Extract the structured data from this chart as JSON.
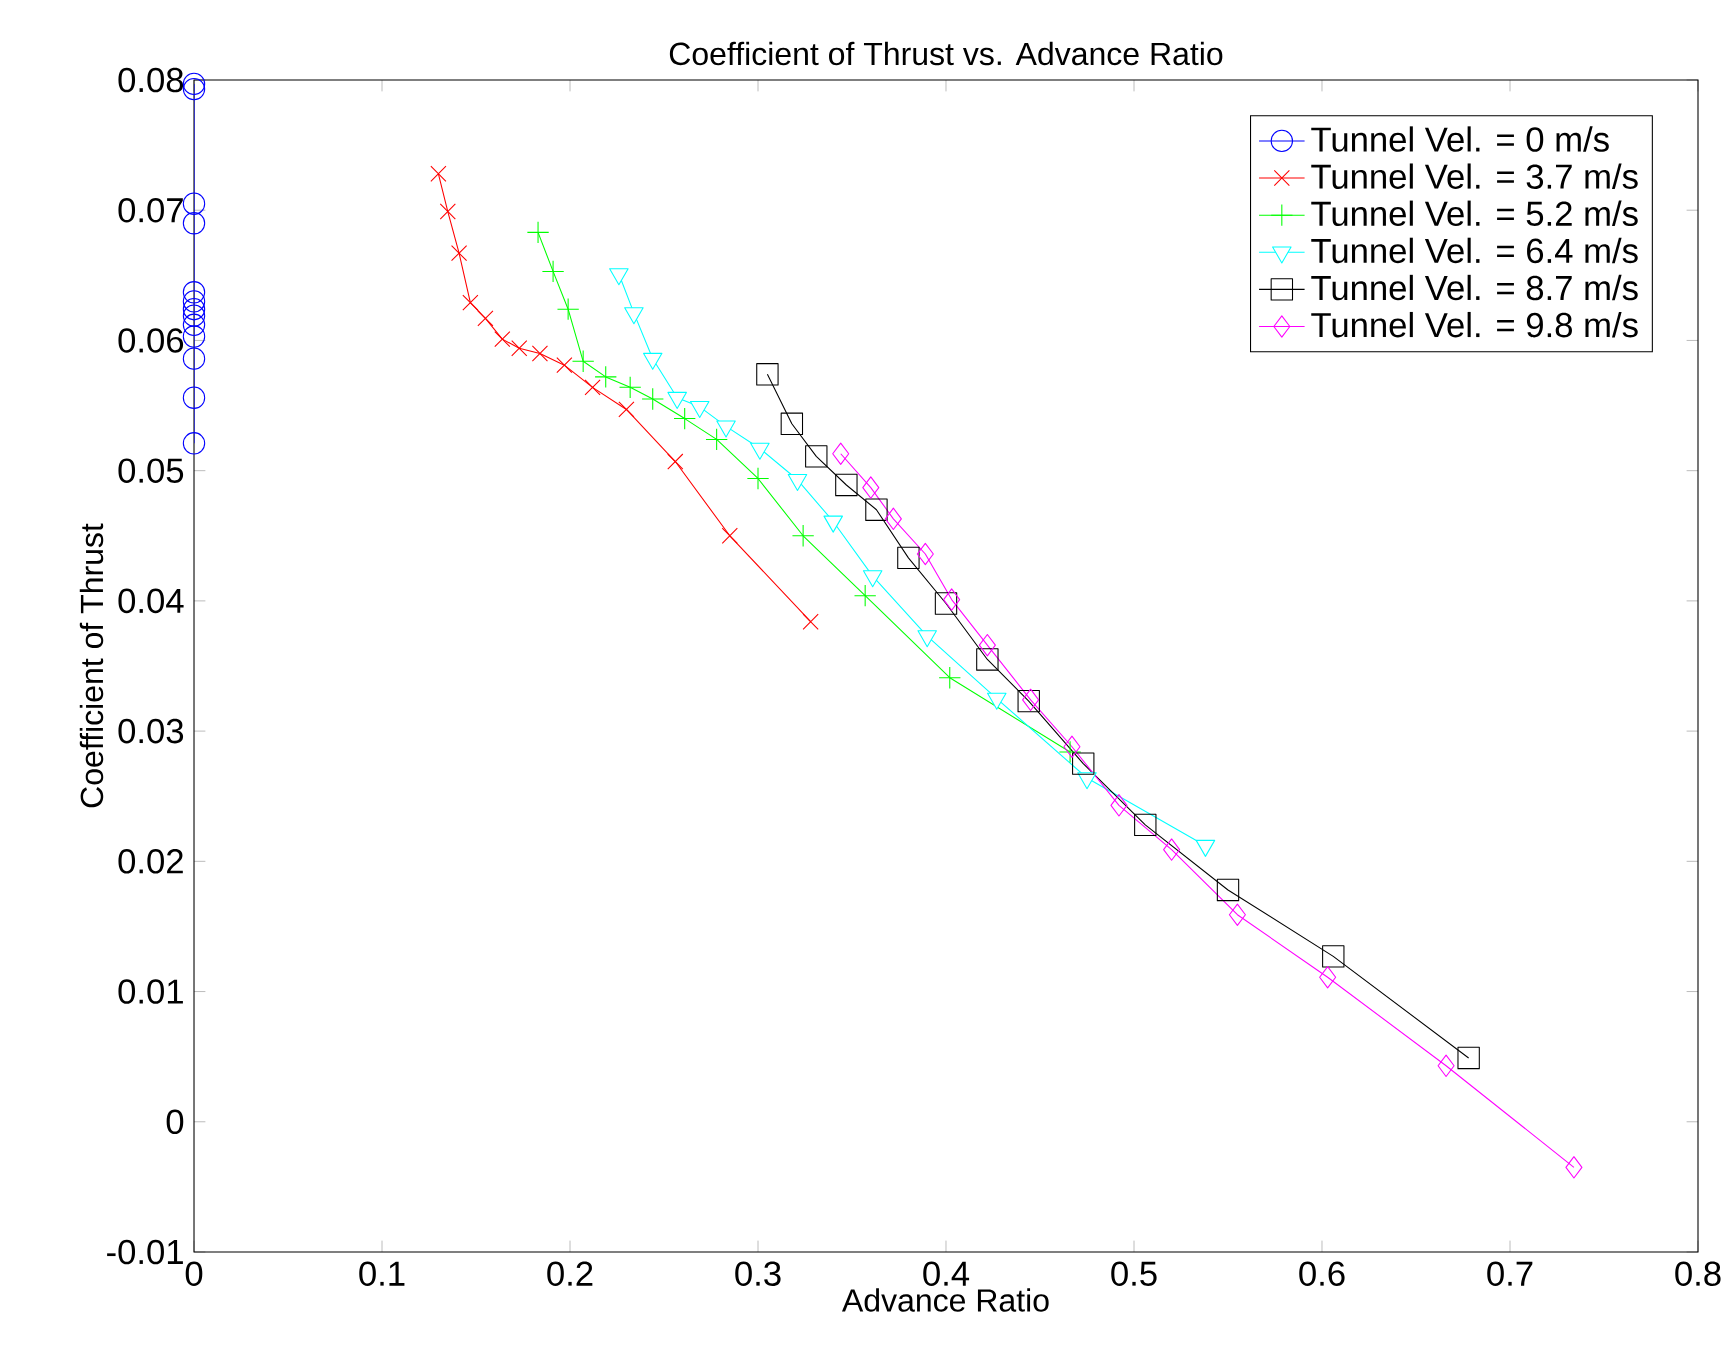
{
  "chart_data": {
    "type": "line",
    "title": "Coefficient of Thrust vs. Advance Ratio",
    "xlabel": "Advance Ratio",
    "ylabel": "Coefficient of Thrust",
    "xlim": [
      0,
      0.8
    ],
    "ylim": [
      -0.01,
      0.08
    ],
    "xticks": [
      0,
      0.1,
      0.2,
      0.3,
      0.4,
      0.5,
      0.6,
      0.7,
      0.8
    ],
    "yticks": [
      -0.01,
      0,
      0.01,
      0.02,
      0.03,
      0.04,
      0.05,
      0.06,
      0.07,
      0.08
    ],
    "grid": false,
    "legend": "top right",
    "series": [
      {
        "name": "Tunnel Vel. = 0 m/s",
        "color": "#0000ff",
        "marker": "circle",
        "x": [
          0,
          0,
          0,
          0,
          0,
          0,
          0,
          0,
          0,
          0,
          0,
          0,
          0
        ],
        "values": [
          0.0797,
          0.0793,
          0.0705,
          0.069,
          0.0637,
          0.063,
          0.0624,
          0.0619,
          0.0612,
          0.0603,
          0.0586,
          0.0556,
          0.0521
        ]
      },
      {
        "name": "Tunnel Vel. = 3.7 m/s",
        "color": "#ff0000",
        "marker": "cross",
        "x": [
          0.13,
          0.135,
          0.141,
          0.147,
          0.155,
          0.164,
          0.173,
          0.184,
          0.197,
          0.212,
          0.23,
          0.256,
          0.285,
          0.328
        ],
        "values": [
          0.0728,
          0.0699,
          0.0667,
          0.0629,
          0.0617,
          0.0601,
          0.0594,
          0.059,
          0.0581,
          0.0564,
          0.0547,
          0.0507,
          0.045,
          0.0384
        ]
      },
      {
        "name": "Tunnel Vel. = 5.2 m/s",
        "color": "#00ff00",
        "marker": "plus",
        "x": [
          0.183,
          0.191,
          0.199,
          0.207,
          0.219,
          0.232,
          0.244,
          0.261,
          0.278,
          0.3,
          0.324,
          0.357,
          0.402,
          0.466
        ],
        "values": [
          0.0683,
          0.0653,
          0.0624,
          0.0584,
          0.0572,
          0.0564,
          0.0555,
          0.054,
          0.0524,
          0.0494,
          0.045,
          0.0404,
          0.0341,
          0.0284
        ]
      },
      {
        "name": "Tunnel Vel. = 6.4 m/s",
        "color": "#00ffff",
        "marker": "triangle",
        "x": [
          0.226,
          0.234,
          0.244,
          0.257,
          0.269,
          0.283,
          0.301,
          0.321,
          0.34,
          0.361,
          0.39,
          0.427,
          0.475,
          0.538
        ],
        "values": [
          0.0651,
          0.0621,
          0.0586,
          0.0556,
          0.0549,
          0.0534,
          0.0517,
          0.0493,
          0.0461,
          0.0419,
          0.0373,
          0.0325,
          0.0264,
          0.0212
        ]
      },
      {
        "name": "Tunnel Vel. = 8.7 m/s",
        "color": "#000000",
        "marker": "square",
        "x": [
          0.305,
          0.318,
          0.331,
          0.347,
          0.363,
          0.38,
          0.4,
          0.422,
          0.444,
          0.473,
          0.506,
          0.55,
          0.606,
          0.678
        ],
        "values": [
          0.0574,
          0.0536,
          0.0511,
          0.0489,
          0.047,
          0.0433,
          0.0398,
          0.0355,
          0.0323,
          0.0275,
          0.0228,
          0.0178,
          0.0127,
          0.0049
        ]
      },
      {
        "name": "Tunnel Vel. = 9.8 m/s",
        "color": "#ff00ff",
        "marker": "diamond",
        "x": [
          0.344,
          0.36,
          0.372,
          0.389,
          0.403,
          0.422,
          0.445,
          0.467,
          0.492,
          0.52,
          0.555,
          0.603,
          0.666,
          0.734
        ],
        "values": [
          0.0513,
          0.0487,
          0.0463,
          0.0436,
          0.0401,
          0.0366,
          0.0324,
          0.0288,
          0.0243,
          0.0209,
          0.0159,
          0.0111,
          0.0043,
          -0.0035
        ]
      }
    ]
  }
}
